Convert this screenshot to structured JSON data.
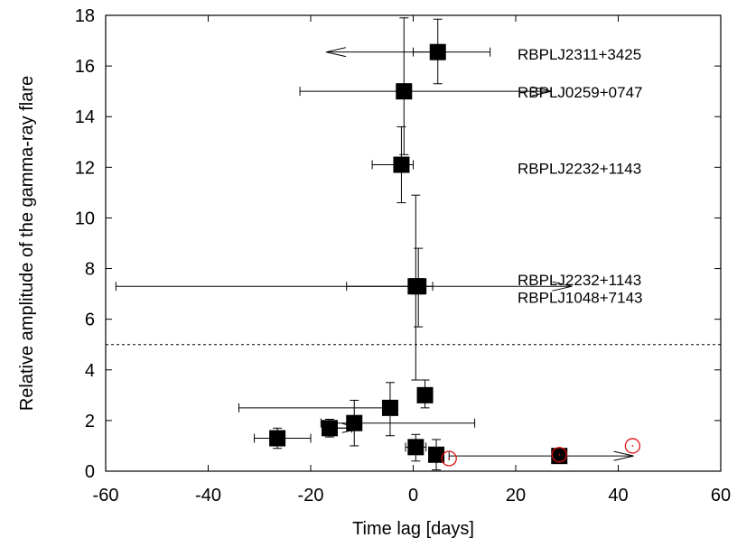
{
  "chart_data": {
    "type": "scatter",
    "title": "",
    "xlabel": "Time lag [days]",
    "ylabel": "Relative amplitude of the gamma-ray flare",
    "xlim": [
      -60,
      60
    ],
    "ylim": [
      0,
      18
    ],
    "x_ticks": [
      -60,
      -40,
      -20,
      0,
      20,
      40,
      60
    ],
    "y_ticks": [
      0,
      2,
      4,
      6,
      8,
      10,
      12,
      14,
      16,
      18
    ],
    "x_tick_labels": [
      "-60",
      "-40",
      "-20",
      "0",
      "20",
      "40",
      "60"
    ],
    "y_tick_labels": [
      "0",
      "2",
      "4",
      "6",
      "8",
      "10",
      "12",
      "14",
      "16",
      "18"
    ],
    "threshold_line": {
      "y": 5,
      "style": "dotted"
    },
    "grid": false,
    "series": [
      {
        "marker": "filled-square",
        "color": "#000000",
        "points": [
          {
            "x": 4.8,
            "y": 16.55,
            "xerr_lo": 4.8,
            "xerr_hi": 10.2,
            "yerr_lo": 1.25,
            "yerr_hi": 1.3,
            "x_limit": "lower",
            "x_limit_to": -17
          },
          {
            "x": -1.8,
            "y": 15.0,
            "xerr_lo": 20.3,
            "xerr_hi": 0,
            "yerr_lo": 2.5,
            "yerr_hi": 2.9,
            "x_limit": "upper",
            "x_limit_to": 27
          },
          {
            "x": -2.3,
            "y": 12.1,
            "xerr_lo": 5.7,
            "xerr_hi": 2.3,
            "yerr_lo": 1.5,
            "yerr_hi": 1.5
          },
          {
            "x": 1.0,
            "y": 7.3,
            "xerr_lo": 14.0,
            "xerr_hi": 2.8,
            "yerr_lo": 1.6,
            "yerr_hi": 1.5,
            "x_limit": "upper",
            "x_limit_to": 31
          },
          {
            "x": 0.5,
            "y": 7.3,
            "xerr_lo": 58.5,
            "xerr_hi": 0,
            "yerr_lo": 3.7,
            "yerr_hi": 3.6
          },
          {
            "x": 2.3,
            "y": 3.0,
            "xerr_lo": 0,
            "xerr_hi": 0,
            "yerr_lo": 0.5,
            "yerr_hi": 0.6
          },
          {
            "x": -4.5,
            "y": 2.5,
            "xerr_lo": 29.5,
            "xerr_hi": 1.3,
            "yerr_lo": 1.1,
            "yerr_hi": 1.0
          },
          {
            "x": -11.5,
            "y": 1.9,
            "xerr_lo": 6.5,
            "xerr_hi": 23.5,
            "yerr_lo": 0.9,
            "yerr_hi": 0.9
          },
          {
            "x": -16.3,
            "y": 1.7,
            "xerr_lo": 0,
            "xerr_hi": 4.3,
            "yerr_lo": 0.35,
            "yerr_hi": 0.35,
            "x_limit": "upper",
            "x_limit_to": -10
          },
          {
            "x": -26.5,
            "y": 1.3,
            "xerr_lo": 4.5,
            "xerr_hi": 6.5,
            "yerr_lo": 0.4,
            "yerr_hi": 0.4
          },
          {
            "x": 0.5,
            "y": 0.95,
            "xerr_lo": 2.0,
            "xerr_hi": 2.0,
            "yerr_lo": 0.55,
            "yerr_hi": 0.5
          },
          {
            "x": 4.5,
            "y": 0.65,
            "xerr_lo": 0,
            "xerr_hi": 1.0,
            "yerr_lo": 0.6,
            "yerr_hi": 0.6
          },
          {
            "x": 28.5,
            "y": 0.6,
            "xerr_lo": 21.5,
            "xerr_hi": 0,
            "yerr_lo": 0,
            "yerr_hi": 0,
            "x_limit": "upper",
            "x_limit_to": 43
          }
        ]
      },
      {
        "marker": "open-circle",
        "color": "#e01010",
        "points": [
          {
            "x": 7.0,
            "y": 0.5
          },
          {
            "x": 28.5,
            "y": 0.65
          },
          {
            "x": 42.8,
            "y": 1.0
          }
        ]
      }
    ],
    "annotations": [
      {
        "text": "RBPLJ2311+3425",
        "x": 20,
        "y": 16.5
      },
      {
        "text": "RBPLJ0259+0747",
        "x": 20,
        "y": 15.0
      },
      {
        "text": "RBPLJ2232+1143",
        "x": 20,
        "y": 12.0
      },
      {
        "text": "RBPLJ2232+1143",
        "x": 20,
        "y": 7.6
      },
      {
        "text": "RBPLJ1048+7143",
        "x": 20,
        "y": 6.9
      }
    ]
  }
}
